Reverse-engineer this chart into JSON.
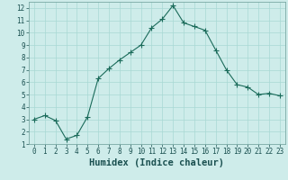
{
  "xlabel": "Humidex (Indice chaleur)",
  "x": [
    0,
    1,
    2,
    3,
    4,
    5,
    6,
    7,
    8,
    9,
    10,
    11,
    12,
    13,
    14,
    15,
    16,
    17,
    18,
    19,
    20,
    21,
    22,
    23
  ],
  "y": [
    3.0,
    3.3,
    2.9,
    1.4,
    1.7,
    3.2,
    6.3,
    7.1,
    7.8,
    8.4,
    9.0,
    10.4,
    11.1,
    12.2,
    10.8,
    10.5,
    10.2,
    8.6,
    7.0,
    5.8,
    5.6,
    5.0,
    5.1,
    4.9
  ],
  "line_color": "#1a6b5a",
  "marker": "+",
  "marker_size": 4,
  "marker_color": "#1a6b5a",
  "bg_color": "#ceecea",
  "grid_color": "#a8d8d4",
  "axis_color": "#7aa8a4",
  "ylim": [
    1,
    12.5
  ],
  "xlim": [
    -0.5,
    23.5
  ],
  "yticks": [
    1,
    2,
    3,
    4,
    5,
    6,
    7,
    8,
    9,
    10,
    11,
    12
  ],
  "xticks": [
    0,
    1,
    2,
    3,
    4,
    5,
    6,
    7,
    8,
    9,
    10,
    11,
    12,
    13,
    14,
    15,
    16,
    17,
    18,
    19,
    20,
    21,
    22,
    23
  ],
  "tick_label_fontsize": 5.5,
  "xlabel_fontsize": 7.5,
  "linewidth": 0.8
}
